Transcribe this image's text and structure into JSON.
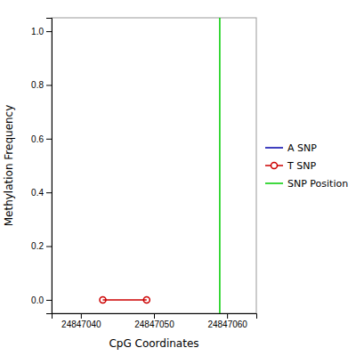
{
  "chart_data": {
    "type": "line",
    "xlabel": "CpG Coordinates",
    "ylabel": "Methylation Frequency",
    "xlim": [
      24847036,
      24847064
    ],
    "ylim": [
      -0.05,
      1.05
    ],
    "xticks": [
      24847040,
      24847050,
      24847060
    ],
    "yticks": [
      {
        "value": 0.0,
        "label": "0.0"
      },
      0.2,
      0.4,
      0.6,
      0.8,
      {
        "value": 1.0,
        "label": "1.0"
      }
    ],
    "legend": "right",
    "series": [
      {
        "name": "A SNP",
        "color": "#0000aa",
        "x": [],
        "values": []
      },
      {
        "name": "T SNP",
        "color": "#cc0000",
        "marker": "circle",
        "x": [
          24847043,
          24847049
        ],
        "values": [
          0.0,
          0.0
        ]
      },
      {
        "name": "SNP Position",
        "type": "vline",
        "color": "#00cc00",
        "x": [
          24847059
        ]
      }
    ]
  }
}
